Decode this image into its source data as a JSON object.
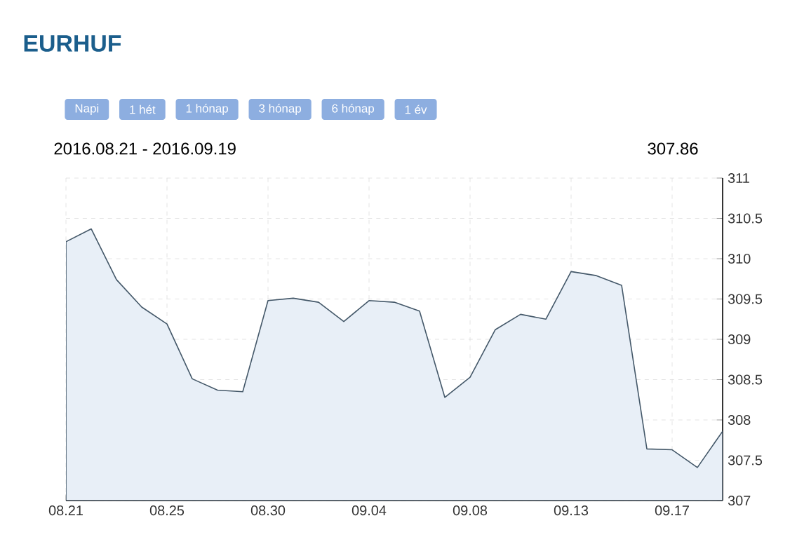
{
  "chart_data": {
    "type": "area",
    "title": "EURHUF",
    "subtitle": "2016.08.21 - 2016.09.19",
    "annotations": [
      "Napi",
      "1 hét",
      "1 hónap",
      "3 hónap",
      "6 hónap",
      "1 év",
      "307.86"
    ],
    "categories": [
      "08.21",
      null,
      null,
      null,
      "08.25",
      null,
      null,
      null,
      "08.30",
      null,
      null,
      null,
      "09.04",
      null,
      null,
      null,
      "09.08",
      null,
      null,
      null,
      "09.13",
      null,
      null,
      null,
      "09.17",
      null,
      null
    ],
    "series": [
      {
        "color": "#e8eff7",
        "values": [
          310.21,
          310.37,
          309.74,
          309.4,
          309.19,
          308.51,
          308.37,
          308.35,
          309.48,
          309.51,
          309.46,
          309.22,
          309.48,
          309.46,
          309.35,
          308.28,
          308.53,
          309.12,
          309.31,
          309.25,
          309.84,
          309.79,
          309.67,
          307.64,
          307.63,
          307.41,
          307.86
        ]
      }
    ],
    "ylim": [
      307,
      311
    ],
    "yticks": [
      307,
      307.5,
      308,
      308.5,
      309,
      309.5,
      310,
      310.5,
      311
    ],
    "grid": true
  }
}
